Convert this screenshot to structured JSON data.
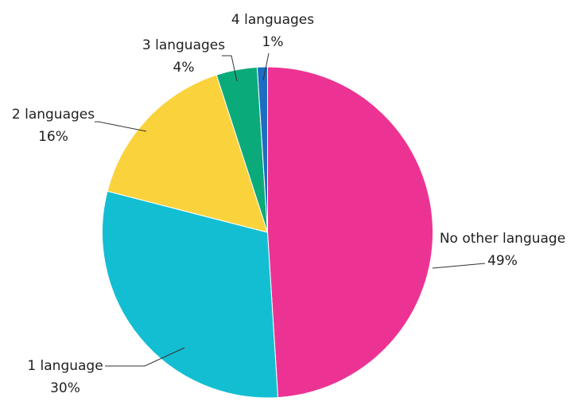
{
  "chart_data": {
    "type": "pie",
    "title": "",
    "slices": [
      {
        "label": "No other language",
        "value": 49,
        "value_label": "49%",
        "color": "#EC3393"
      },
      {
        "label": "1 language",
        "value": 30,
        "value_label": "30%",
        "color": "#14BED2"
      },
      {
        "label": "2 languages",
        "value": 16,
        "value_label": "16%",
        "color": "#FAD23C"
      },
      {
        "label": "3 languages",
        "value": 4,
        "value_label": "4%",
        "color": "#0BAA7A"
      },
      {
        "label": "4 languages",
        "value": 1,
        "value_label": "1%",
        "color": "#1C6EC2"
      }
    ],
    "start_angle": "12 o'clock",
    "direction": "clockwise",
    "legend": "none (labels beside slices with leader lines)"
  }
}
